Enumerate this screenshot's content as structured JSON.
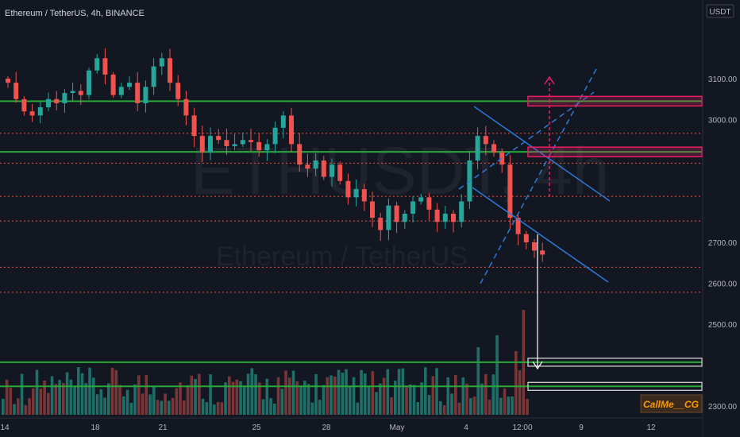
{
  "header": {
    "title": "Ethereum / TetherUS, 4h, BINANCE",
    "currency": "USDT"
  },
  "watermark": {
    "symbol": "ETHUSDT, 4h",
    "name": "Ethereum / TetherUS"
  },
  "signature": "CallMe__CG",
  "colors": {
    "background": "#131722",
    "up": "#26a69a",
    "down": "#ef5350",
    "green_line": "#2aa837",
    "red_dotted": "#f0503c",
    "channel": "#2d7ad6",
    "target_box": "#e91e63",
    "target_box_low": "#e0e0e0",
    "arrow": "#ffffff"
  },
  "chart_data": {
    "type": "candlestick",
    "symbol": "Ethereum / TetherUS",
    "timeframe": "4h",
    "exchange": "BINANCE",
    "y_axis": {
      "unit": "USDT",
      "ticks": [
        3100,
        3000,
        2700,
        2600,
        2500,
        2300
      ]
    },
    "x_axis": {
      "ticks": [
        "14",
        "18",
        "21",
        "25",
        "28",
        "May",
        "4",
        "12:00",
        "9",
        "12"
      ]
    },
    "close_series": [
      3090,
      3050,
      3020,
      3010,
      3030,
      3050,
      3040,
      3065,
      3070,
      3060,
      3120,
      3150,
      3110,
      3060,
      3080,
      3090,
      3040,
      3080,
      3130,
      3150,
      3090,
      3050,
      3010,
      2960,
      2920,
      2960,
      2950,
      2935,
      2940,
      2950,
      2945,
      2925,
      2940,
      2980,
      3010,
      2940,
      2890,
      2880,
      2900,
      2860,
      2890,
      2850,
      2810,
      2830,
      2800,
      2760,
      2730,
      2790,
      2750,
      2770,
      2800,
      2810,
      2780,
      2750,
      2770,
      2750,
      2800,
      2900,
      2960,
      2940,
      2920,
      2890,
      2760,
      2720,
      2700,
      2680,
      2670
    ],
    "price_levels": [
      {
        "label": "3045.00",
        "value": 3045.0,
        "style": "green-line",
        "tag_color": "#2aa837"
      },
      {
        "label": "2966.57",
        "value": 2966.57,
        "style": "red-dotted",
        "tag_color": "#f05a28"
      },
      {
        "label": "2921.00",
        "value": 2921.0,
        "style": "green-line",
        "tag_color": "#2aa837"
      },
      {
        "label": "2893.47",
        "value": 2893.47,
        "style": "red-dotted",
        "tag_color": "#f05a28"
      },
      {
        "label": "2812.40",
        "value": 2812.4,
        "style": "red-dotted",
        "tag_color": "#f05a28"
      },
      {
        "label": "2752.11",
        "value": 2752.11,
        "style": "red-dotted",
        "tag_color": "#f05a28"
      },
      {
        "label": "2639.00",
        "value": 2639.0,
        "style": "red-dotted",
        "tag_color": "#f05a28"
      },
      {
        "label": "2578.00",
        "value": 2578.0,
        "style": "red-dotted",
        "tag_color": "#f05a28"
      },
      {
        "label": "2407.00",
        "value": 2407.0,
        "style": "green-line",
        "tag_color": "#2aa837"
      },
      {
        "label": "2348.00",
        "value": 2348.0,
        "style": "green-line",
        "tag_color": "#2aa837"
      }
    ]
  }
}
